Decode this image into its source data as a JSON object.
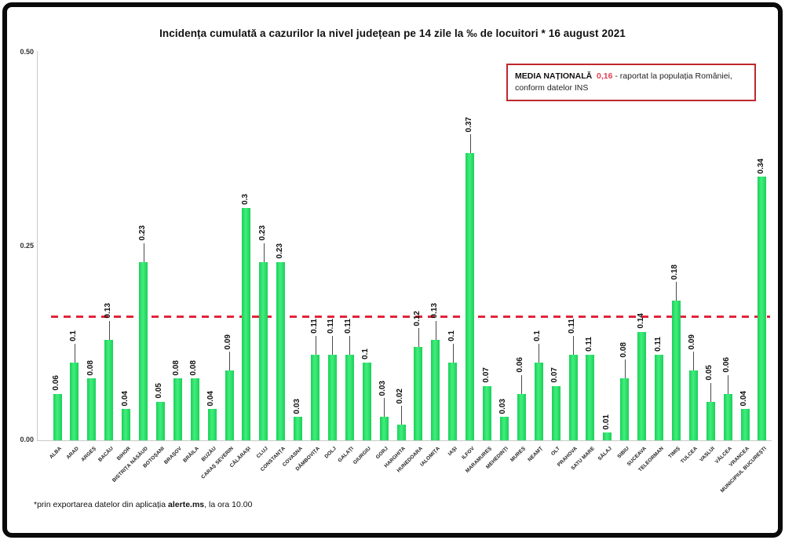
{
  "title": "Incidența cumulată a cazurilor la nivel județean pe 14 zile la ‰ de locuitori *  16 august 2021",
  "legend": {
    "label": "MEDIA NAȚIONALĂ",
    "value": "0,16",
    "after_value": " - raportat la populația României,",
    "line2": "conform datelor INS"
  },
  "footnote": {
    "prefix": "*prin exportarea datelor din aplicația ",
    "bold": "alerte.ms",
    "suffix": ", la ora 10.00"
  },
  "chart_data": {
    "type": "bar",
    "title": "Incidența cumulată a cazurilor la nivel județean pe 14 zile la ‰ de locuitori * 16 august 2021",
    "xlabel": "",
    "ylabel": "",
    "ylim": [
      0,
      0.5
    ],
    "yticks": [
      "0.50",
      "0.25",
      "0.00"
    ],
    "ytick_values": [
      0.5,
      0.25,
      0.0
    ],
    "grid": false,
    "legend_position": "top-right",
    "national_average": 0.16,
    "national_average_label": "0,16",
    "bar_color": "#2ae465",
    "avg_line_color": "#e3243b",
    "categories": [
      "ALBA",
      "ARAD",
      "ARGEȘ",
      "BACĂU",
      "BIHOR",
      "BISTRIȚA NĂSĂUD",
      "BOTOȘANI",
      "BRAȘOV",
      "BRĂILA",
      "BUZĂU",
      "CARAȘ SEVERIN",
      "CĂLĂRAȘI",
      "CLUJ",
      "CONSTANȚA",
      "COVASNA",
      "DÂMBOVIȚA",
      "DOLJ",
      "GALAȚI",
      "GIURGIU",
      "GORJ",
      "HARGHITA",
      "HUNEDOARA",
      "IALOMIȚA",
      "IAȘI",
      "ILFOV",
      "MARAMUREȘ",
      "MEHEDINȚI",
      "MUREȘ",
      "NEAMȚ",
      "OLT",
      "PRAHOVA",
      "SATU MARE",
      "SĂLAJ",
      "SIBIU",
      "SUCEAVA",
      "TELEORMAN",
      "TIMIȘ",
      "TULCEA",
      "VASLUI",
      "VÂLCEA",
      "VRANCEA",
      "MUNICIPIUL BUCUREȘTI"
    ],
    "values": [
      0.06,
      0.1,
      0.08,
      0.13,
      0.04,
      0.23,
      0.05,
      0.08,
      0.08,
      0.04,
      0.09,
      0.3,
      0.23,
      0.23,
      0.03,
      0.11,
      0.11,
      0.11,
      0.1,
      0.03,
      0.02,
      0.12,
      0.13,
      0.1,
      0.37,
      0.07,
      0.03,
      0.06,
      0.1,
      0.07,
      0.11,
      0.11,
      0.01,
      0.08,
      0.14,
      0.11,
      0.18,
      0.09,
      0.05,
      0.06,
      0.04,
      0.34
    ],
    "value_labels": [
      "0.06",
      "0.1",
      "0.08",
      "0.13",
      "0.04",
      "0.23",
      "0.05",
      "0.08",
      "0.08",
      "0.04",
      "0.09",
      "0.3",
      "0.23",
      "0.23",
      "0.03",
      "0.11",
      "0.11",
      "0.11",
      "0.1",
      "0.03",
      "0.02",
      "0.12",
      "0.13",
      "0.1",
      "0.37",
      "0.07",
      "0.03",
      "0.06",
      "0.1",
      "0.07",
      "0.11",
      "0.11",
      "0.01",
      "0.08",
      "0.14",
      "0.11",
      "0.18",
      "0.09",
      "0.05",
      "0.06",
      "0.04",
      "0.34"
    ],
    "label_leader_lines": [
      false,
      true,
      false,
      true,
      false,
      true,
      false,
      false,
      false,
      false,
      true,
      false,
      true,
      false,
      false,
      true,
      true,
      true,
      false,
      true,
      true,
      true,
      true,
      true,
      true,
      false,
      false,
      true,
      true,
      false,
      true,
      false,
      false,
      true,
      false,
      false,
      true,
      true,
      true,
      true,
      false,
      false
    ]
  }
}
